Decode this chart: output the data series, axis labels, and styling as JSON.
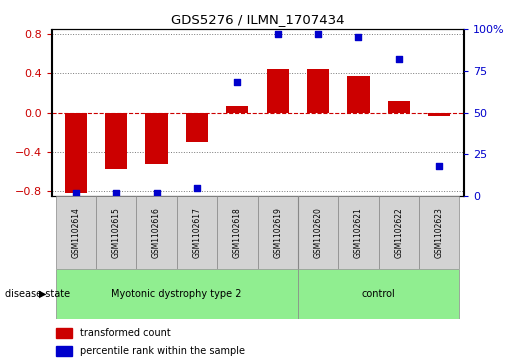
{
  "title": "GDS5276 / ILMN_1707434",
  "samples": [
    "GSM1102614",
    "GSM1102615",
    "GSM1102616",
    "GSM1102617",
    "GSM1102618",
    "GSM1102619",
    "GSM1102620",
    "GSM1102621",
    "GSM1102622",
    "GSM1102623"
  ],
  "bar_values": [
    -0.82,
    -0.58,
    -0.52,
    -0.3,
    0.07,
    0.44,
    0.44,
    0.37,
    0.12,
    -0.04
  ],
  "scatter_values": [
    2,
    2,
    2,
    5,
    68,
    97,
    97,
    95,
    82,
    18
  ],
  "group1_count": 6,
  "group2_count": 4,
  "group1_label": "Myotonic dystrophy type 2",
  "group2_label": "control",
  "group_color": "#90EE90",
  "sample_box_color": "#D3D3D3",
  "bar_color": "#CC0000",
  "scatter_color": "#0000CC",
  "ylim_left": [
    -0.85,
    0.85
  ],
  "ylim_right": [
    0,
    100
  ],
  "yticks_left": [
    -0.8,
    -0.4,
    0.0,
    0.4,
    0.8
  ],
  "yticks_right": [
    0,
    25,
    50,
    75,
    100
  ],
  "ytick_labels_right": [
    "0",
    "25",
    "50",
    "75",
    "100%"
  ],
  "hline_zero_color": "#CC0000",
  "hline_dotted_color": "#777777",
  "bg_color": "#ffffff",
  "legend_red_label": "transformed count",
  "legend_blue_label": "percentile rank within the sample",
  "disease_state_label": "disease state"
}
